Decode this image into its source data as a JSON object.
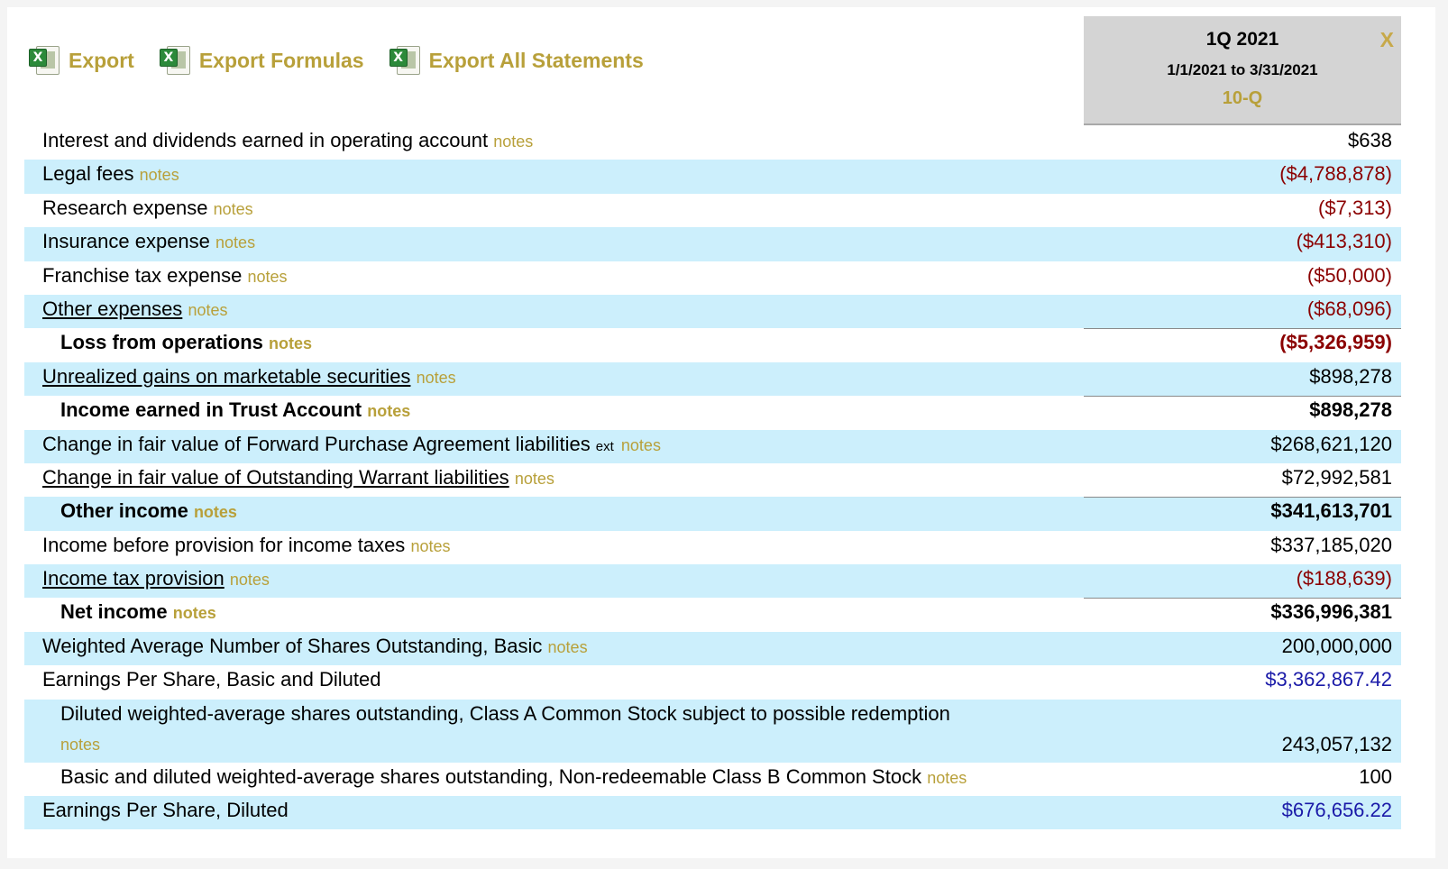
{
  "toolbar": {
    "export_label": "Export",
    "export_formulas_label": "Export Formulas",
    "export_all_label": "Export All Statements",
    "icon": "excel-icon"
  },
  "period": {
    "label": "1Q 2021",
    "range": "1/1/2021 to 3/31/2021",
    "form": "10-Q",
    "close": "X"
  },
  "notes_label": "notes",
  "ext_label": "ext",
  "rows": [
    {
      "label": "Interest and dividends earned in operating account",
      "value": "$638"
    },
    {
      "label": "Legal fees",
      "value": "($4,788,878)"
    },
    {
      "label": "Research expense",
      "value": "($7,313)"
    },
    {
      "label": "Insurance expense",
      "value": "($413,310)"
    },
    {
      "label": "Franchise tax expense",
      "value": "($50,000)"
    },
    {
      "label": "Other expenses",
      "value": "($68,096)"
    },
    {
      "label": "Loss from operations",
      "value": "($5,326,959)"
    },
    {
      "label": "Unrealized gains on marketable securities",
      "value": "$898,278"
    },
    {
      "label": "Income earned in Trust Account",
      "value": "$898,278"
    },
    {
      "label": "Change in fair value of Forward Purchase Agreement liabilities",
      "value": "$268,621,120"
    },
    {
      "label": "Change in fair value of Outstanding Warrant liabilities",
      "value": "$72,992,581"
    },
    {
      "label": "Other income",
      "value": "$341,613,701"
    },
    {
      "label": "Income before provision for income taxes",
      "value": "$337,185,020"
    },
    {
      "label": "Income tax provision",
      "value": "($188,639)"
    },
    {
      "label": "Net income",
      "value": "$336,996,381"
    },
    {
      "label": "Weighted Average Number of Shares Outstanding, Basic",
      "value": "200,000,000"
    },
    {
      "label": "Earnings Per Share, Basic and Diluted",
      "value": "$3,362,867.42"
    },
    {
      "label": "Diluted weighted-average shares outstanding, Class A Common Stock subject to possible redemption",
      "value": "243,057,132"
    },
    {
      "label": "Basic and diluted weighted-average shares outstanding, Non-redeemable Class B Common Stock",
      "value": "100"
    },
    {
      "label": "Earnings Per Share, Diluted",
      "value": "$676,656.22"
    }
  ],
  "colors": {
    "gold": "#b8a03a",
    "negative": "#8b0000",
    "per_share": "#1a1aa8",
    "row_shade": "#cceffc",
    "header_bg": "#d4d4d4"
  }
}
